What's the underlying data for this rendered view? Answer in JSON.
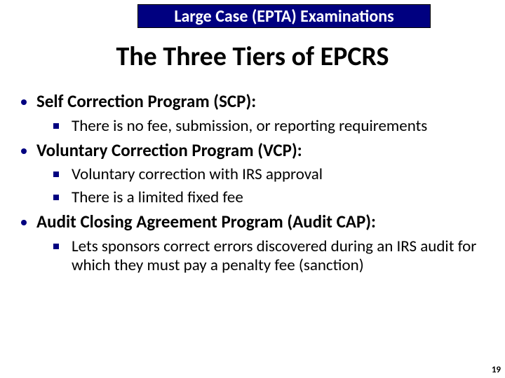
{
  "banner": {
    "text": "Large Case (EPTA) Examinations"
  },
  "title": "The Three Tiers of EPCRS",
  "items": [
    {
      "label": "Self Correction Program (SCP):",
      "subs": [
        "There is no fee, submission, or reporting requirements"
      ]
    },
    {
      "label": "Voluntary Correction Program (VCP):",
      "subs": [
        "Voluntary correction with IRS approval",
        "There is a limited fixed fee"
      ]
    },
    {
      "label": "Audit Closing Agreement Program (Audit CAP):",
      "subs": [
        "Lets sponsors correct errors discovered during an IRS audit for which they must pay a penalty fee (sanction)"
      ]
    }
  ],
  "page_number": "19",
  "colors": {
    "accent": "#000080",
    "banner_bg": "#000080",
    "banner_text": "#ffffff",
    "body_text": "#000000",
    "background": "#ffffff"
  }
}
